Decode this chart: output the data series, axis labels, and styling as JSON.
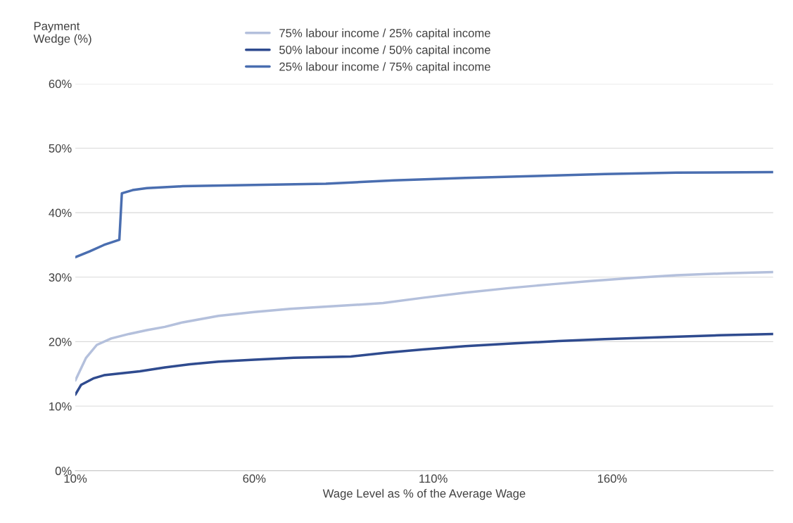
{
  "chart_data": {
    "type": "line",
    "xlabel": "Wage Level as % of the Average Wage",
    "ylabel": "Payment\nWedge (%)",
    "xlim": [
      10,
      205
    ],
    "xticks": [
      {
        "value": 10,
        "label": "10%"
      },
      {
        "value": 60,
        "label": "60%"
      },
      {
        "value": 110,
        "label": "110%"
      },
      {
        "value": 160,
        "label": "160%"
      }
    ],
    "ylim": [
      0,
      60
    ],
    "yticks": [
      {
        "value": 0,
        "label": "0%"
      },
      {
        "value": 10,
        "label": "10%"
      },
      {
        "value": 20,
        "label": "20%"
      },
      {
        "value": 30,
        "label": "30%"
      },
      {
        "value": 40,
        "label": "40%"
      },
      {
        "value": 50,
        "label": "50%"
      },
      {
        "value": 60,
        "label": "60%"
      }
    ],
    "grid": "y",
    "legend": "top",
    "marker": "none",
    "line_style": "solid",
    "series": [
      {
        "name": "75% labour income / 25% capital income",
        "color": "#b4c0dc",
        "x": [
          10,
          13,
          16,
          20,
          25,
          30,
          35,
          40,
          50,
          60,
          70,
          82,
          91,
          96,
          107,
          119,
          131,
          143,
          154,
          166,
          178,
          192,
          205
        ],
        "values": [
          14,
          17.5,
          19.5,
          20.5,
          21.2,
          21.8,
          22.3,
          23,
          24,
          24.6,
          25.1,
          25.5,
          25.8,
          26,
          26.8,
          27.6,
          28.3,
          28.9,
          29.4,
          29.9,
          30.3,
          30.6,
          30.8
        ]
      },
      {
        "name": "50% labour income / 50% capital income",
        "color": "#2f4b8f",
        "x": [
          10,
          11.6,
          15,
          18,
          23,
          28,
          35,
          42,
          50,
          60,
          71,
          87,
          97,
          107,
          119,
          131,
          145,
          158,
          174,
          190,
          205
        ],
        "values": [
          11.8,
          13.3,
          14.3,
          14.8,
          15.1,
          15.4,
          16,
          16.5,
          16.9,
          17.2,
          17.5,
          17.7,
          18.3,
          18.8,
          19.3,
          19.7,
          20.1,
          20.4,
          20.7,
          21,
          21.2
        ]
      },
      {
        "name": "25% labour income / 75% capital income",
        "color": "#4a6eb0",
        "x": [
          10,
          14,
          18,
          22.3,
          23,
          26,
          30,
          40,
          60,
          80,
          99,
          119,
          139,
          158,
          178,
          205
        ],
        "values": [
          33.1,
          34,
          35,
          35.8,
          43,
          43.5,
          43.8,
          44.1,
          44.3,
          44.5,
          45,
          45.4,
          45.7,
          46,
          46.2,
          46.3
        ]
      }
    ]
  }
}
